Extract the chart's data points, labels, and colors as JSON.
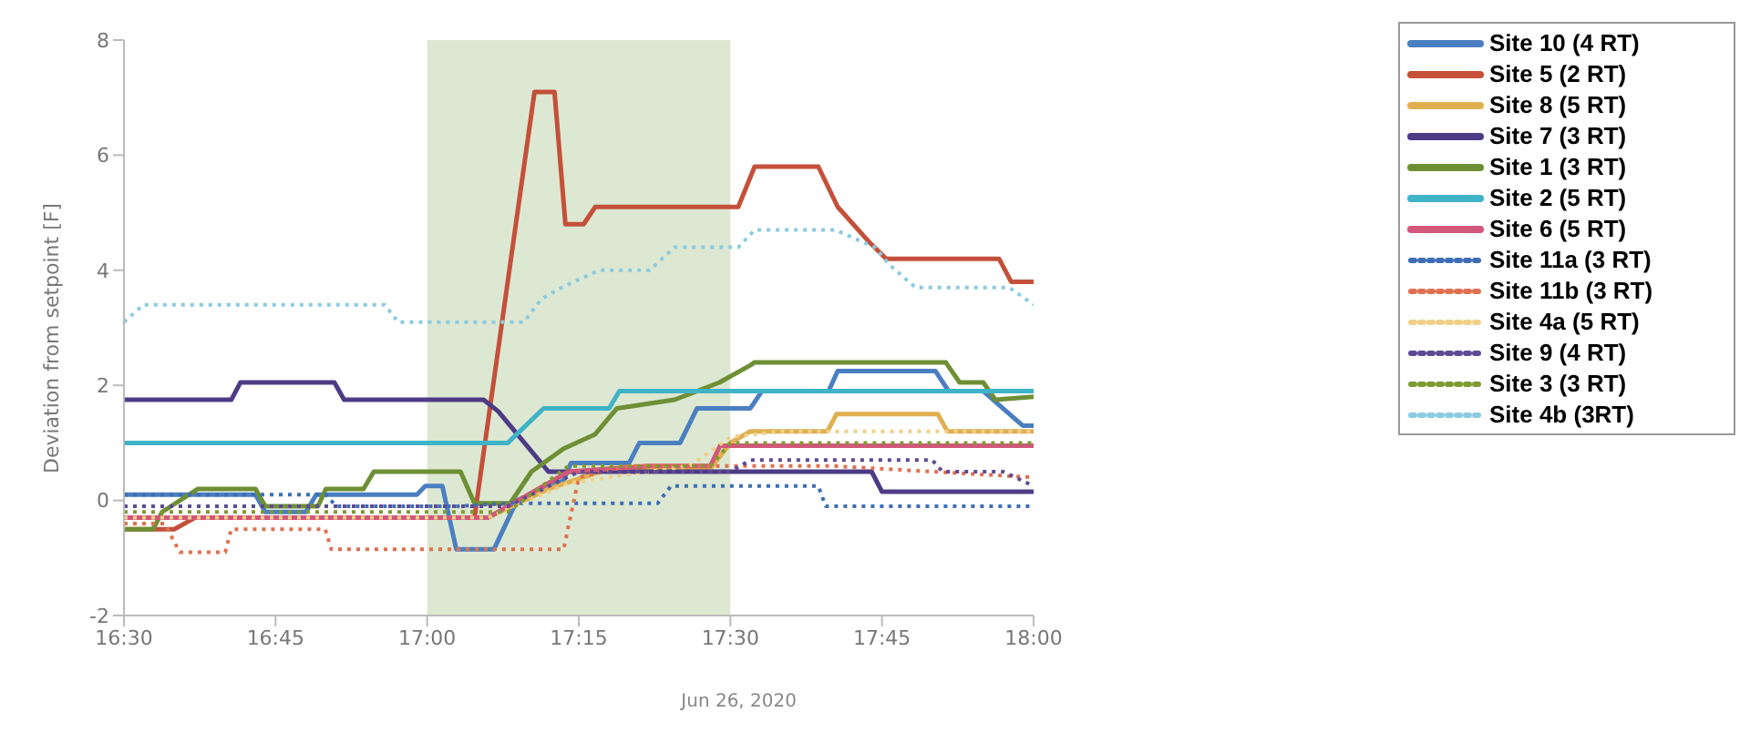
{
  "chart_data": {
    "type": "line",
    "xlabel": "Jun 26, 2020",
    "ylabel": "Deviation from setpoint [F]",
    "xlim": [
      16.5,
      18
    ],
    "xticks": [
      {
        "value": 16.5,
        "label": "16:30"
      },
      {
        "value": 16.75,
        "label": "16:45"
      },
      {
        "value": 17,
        "label": "17:00"
      },
      {
        "value": 17.25,
        "label": "17:15"
      },
      {
        "value": 17.5,
        "label": "17:30"
      },
      {
        "value": 17.75,
        "label": "17:45"
      },
      {
        "value": 18,
        "label": "18:00"
      }
    ],
    "ylim": [
      -2,
      8
    ],
    "yticks": [
      -2,
      0,
      2,
      4,
      6,
      8
    ],
    "grid": false,
    "legend": "right",
    "marker": "none",
    "bands": [
      {
        "axis": "x",
        "from": 17,
        "to": 17.5,
        "color": "#dde8d2"
      }
    ],
    "series": [
      {
        "name": "Site 10 (4 RT)",
        "color": "#4a7fc1",
        "line_style": "solid",
        "x": [
          16.5,
          16.717,
          16.733,
          16.8,
          16.817,
          16.983,
          16.997,
          17.025,
          17.048,
          17.11,
          17.148,
          17.225,
          17.237,
          17.333,
          17.35,
          17.417,
          17.445,
          17.533,
          17.552,
          17.662,
          17.677,
          17.838,
          17.86,
          17.917,
          17.982,
          18
        ],
        "values": [
          0.1,
          0.1,
          -0.2,
          -0.2,
          0.1,
          0.1,
          0.25,
          0.25,
          -0.85,
          -0.85,
          0.0,
          0.35,
          0.65,
          0.65,
          1.0,
          1.0,
          1.6,
          1.6,
          1.9,
          1.9,
          2.25,
          2.25,
          1.9,
          1.9,
          1.3,
          1.3
        ]
      },
      {
        "name": "Site 5 (2 RT)",
        "color": "#c4503a",
        "line_style": "solid",
        "x": [
          16.5,
          16.583,
          16.617,
          17.078,
          17.177,
          17.21,
          17.228,
          17.258,
          17.277,
          17.513,
          17.54,
          17.645,
          17.677,
          17.728,
          17.757,
          17.943,
          17.963,
          18
        ],
        "values": [
          -0.5,
          -0.5,
          -0.3,
          -0.3,
          7.1,
          7.1,
          4.8,
          4.8,
          5.1,
          5.1,
          5.8,
          5.8,
          5.1,
          4.5,
          4.2,
          4.2,
          3.8,
          3.8
        ]
      },
      {
        "name": "Site 8 (5 RT)",
        "color": "#e0b050",
        "line_style": "solid",
        "x": [
          16.5,
          17.1,
          17.2,
          17.3,
          17.467,
          17.5,
          17.533,
          17.66,
          17.675,
          17.842,
          17.858,
          18
        ],
        "values": [
          -0.3,
          -0.3,
          0.2,
          0.55,
          0.55,
          1.0,
          1.2,
          1.2,
          1.5,
          1.5,
          1.2,
          1.2
        ]
      },
      {
        "name": "Site 7 (3 RT)",
        "color": "#4e3b86",
        "line_style": "solid",
        "x": [
          16.5,
          16.677,
          16.692,
          16.847,
          16.863,
          17.093,
          17.117,
          17.2,
          17.733,
          17.75,
          18
        ],
        "values": [
          1.75,
          1.75,
          2.05,
          2.05,
          1.75,
          1.75,
          1.55,
          0.5,
          0.5,
          0.15,
          0.15
        ]
      },
      {
        "name": "Site 1 (3 RT)",
        "color": "#6e8f34",
        "line_style": "solid",
        "x": [
          16.5,
          16.548,
          16.563,
          16.622,
          16.717,
          16.733,
          16.82,
          16.833,
          16.895,
          16.912,
          17.055,
          17.078,
          17.137,
          17.172,
          17.225,
          17.277,
          17.313,
          17.408,
          17.482,
          17.533,
          17.54,
          17.855,
          17.878,
          17.917,
          17.937,
          18
        ],
        "values": [
          -0.5,
          -0.5,
          -0.2,
          0.2,
          0.2,
          -0.1,
          -0.1,
          0.2,
          0.2,
          0.5,
          0.5,
          -0.05,
          -0.05,
          0.5,
          0.9,
          1.15,
          1.6,
          1.75,
          2.05,
          2.35,
          2.4,
          2.4,
          2.05,
          2.05,
          1.75,
          1.8
        ]
      },
      {
        "name": "Site 2 (5 RT)",
        "color": "#3fb3c8",
        "line_style": "solid",
        "x": [
          16.5,
          17.133,
          17.192,
          17.3,
          17.317,
          18
        ],
        "values": [
          1.0,
          1.0,
          1.6,
          1.6,
          1.9,
          1.9
        ]
      },
      {
        "name": "Site 6 (5 RT)",
        "color": "#d2577a",
        "line_style": "solid",
        "x": [
          16.5,
          17.1,
          17.233,
          17.367,
          17.467,
          17.483,
          18
        ],
        "values": [
          -0.3,
          -0.3,
          0.5,
          0.6,
          0.6,
          0.95,
          0.95
        ]
      },
      {
        "name": "Site 11a (3 RT)",
        "color": "#3d6eb5",
        "line_style": "dotted",
        "x": [
          16.5,
          16.833,
          16.85,
          17.05,
          17.133,
          17.38,
          17.402,
          17.645,
          17.657,
          18
        ],
        "values": [
          0.1,
          0.1,
          -0.1,
          -0.1,
          -0.05,
          -0.05,
          0.25,
          0.25,
          -0.1,
          -0.1
        ]
      },
      {
        "name": "Site 11b (3 RT)",
        "color": "#e07050",
        "line_style": "dotted",
        "x": [
          16.5,
          16.567,
          16.592,
          16.667,
          16.677,
          16.832,
          16.842,
          17.225,
          17.25,
          17.333,
          17.667,
          18
        ],
        "values": [
          -0.4,
          -0.4,
          -0.9,
          -0.9,
          -0.5,
          -0.5,
          -0.85,
          -0.85,
          0.4,
          0.6,
          0.6,
          0.4
        ]
      },
      {
        "name": "Site 4a (5 RT)",
        "color": "#f0d088",
        "line_style": "dotted",
        "x": [
          16.5,
          17.1,
          17.233,
          17.433,
          17.5,
          17.583,
          18
        ],
        "values": [
          -0.3,
          -0.3,
          0.3,
          0.6,
          1.1,
          1.2,
          1.2
        ]
      },
      {
        "name": "Site 9 (4 RT)",
        "color": "#5e4a94",
        "line_style": "dotted",
        "x": [
          16.5,
          17.133,
          17.25,
          17.5,
          17.533,
          17.833,
          17.85,
          17.95,
          18
        ],
        "values": [
          -0.1,
          -0.1,
          0.5,
          0.5,
          0.7,
          0.7,
          0.5,
          0.5,
          0.25
        ]
      },
      {
        "name": "Site 3 (3 RT)",
        "color": "#7f9a30",
        "line_style": "dotted",
        "x": [
          16.5,
          17.133,
          17.233,
          17.467,
          17.5,
          18
        ],
        "values": [
          -0.2,
          -0.2,
          0.6,
          0.6,
          1.0,
          1.0
        ]
      },
      {
        "name": "Site 4b (3RT)",
        "color": "#8ccbe0",
        "line_style": "dotted",
        "x": [
          16.5,
          16.532,
          16.93,
          16.952,
          17.16,
          17.188,
          17.222,
          17.283,
          17.367,
          17.408,
          17.513,
          17.54,
          17.673,
          17.738,
          17.762,
          17.805,
          17.96,
          18
        ],
        "values": [
          3.1,
          3.4,
          3.4,
          3.1,
          3.1,
          3.5,
          3.7,
          4.0,
          4.0,
          4.4,
          4.4,
          4.7,
          4.7,
          4.4,
          4.1,
          3.7,
          3.7,
          3.4
        ]
      }
    ]
  }
}
